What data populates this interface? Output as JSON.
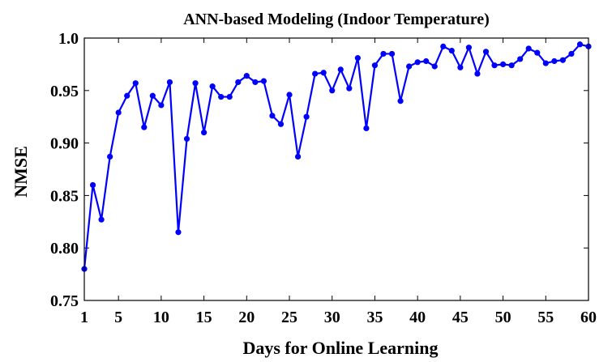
{
  "chart_data": {
    "type": "line",
    "title": "ANN-based Modeling (Indoor Temperature)",
    "xlabel": "Days for Online Learning",
    "ylabel": "NMSE",
    "xlim": [
      1,
      60
    ],
    "ylim": [
      0.75,
      1.0
    ],
    "xticks": [
      "1",
      "5",
      "10",
      "15",
      "20",
      "25",
      "30",
      "35",
      "40",
      "45",
      "50",
      "55",
      "60"
    ],
    "yticks": [
      "0.75",
      "0.80",
      "0.85",
      "0.90",
      "0.95",
      "1.0"
    ],
    "grid": false,
    "line_color": "#0000ff",
    "series": [
      {
        "x": [
          1,
          2,
          3,
          4,
          5,
          6,
          7,
          8,
          9,
          10,
          11,
          12,
          13,
          14,
          15,
          16,
          17,
          18,
          19,
          20,
          21,
          22,
          23,
          24,
          25,
          26,
          27,
          28,
          29,
          30,
          31,
          32,
          33,
          34,
          35,
          36,
          37,
          38,
          39,
          40,
          41,
          42,
          43,
          44,
          45,
          46,
          47,
          48,
          49,
          50,
          51,
          52,
          53,
          54,
          55,
          56,
          57,
          58,
          59,
          60
        ],
        "values": [
          0.78,
          0.86,
          0.827,
          0.887,
          0.929,
          0.945,
          0.957,
          0.915,
          0.945,
          0.936,
          0.958,
          0.815,
          0.904,
          0.957,
          0.91,
          0.954,
          0.944,
          0.944,
          0.958,
          0.964,
          0.958,
          0.959,
          0.926,
          0.918,
          0.946,
          0.887,
          0.925,
          0.966,
          0.967,
          0.95,
          0.97,
          0.952,
          0.981,
          0.914,
          0.974,
          0.985,
          0.985,
          0.94,
          0.973,
          0.977,
          0.978,
          0.973,
          0.992,
          0.988,
          0.972,
          0.991,
          0.966,
          0.987,
          0.974,
          0.975,
          0.974,
          0.98,
          0.99,
          0.986,
          0.976,
          0.978,
          0.979,
          0.985,
          0.994,
          0.992
        ]
      }
    ]
  }
}
